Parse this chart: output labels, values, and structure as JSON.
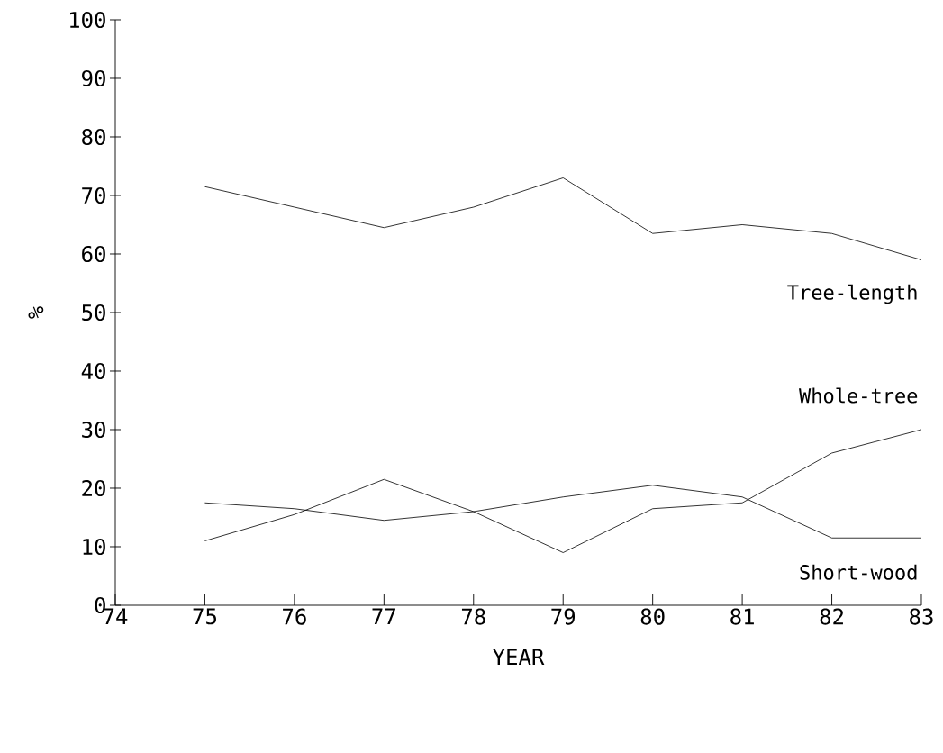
{
  "chart_data": {
    "type": "line",
    "xlabel": "YEAR",
    "ylabel": "%",
    "x": [
      75,
      76,
      77,
      78,
      79,
      80,
      81,
      82,
      83
    ],
    "series": [
      {
        "name": "Tree-length",
        "color": "#000000",
        "values": [
          71.5,
          68,
          64.5,
          68,
          73,
          63.5,
          65,
          63.5,
          59
        ]
      },
      {
        "name": "Whole-tree",
        "color": "#000000",
        "values": [
          11,
          15.5,
          21.5,
          16,
          9,
          16.5,
          17.5,
          26,
          30
        ]
      },
      {
        "name": "Short-wood",
        "color": "#000000",
        "values": [
          17.5,
          16.5,
          14.5,
          16,
          18.5,
          20.5,
          18.5,
          11.5,
          11.5
        ]
      }
    ],
    "xlim": [
      74,
      83
    ],
    "ylim": [
      0,
      100
    ],
    "xticks": [
      74,
      75,
      76,
      77,
      78,
      79,
      80,
      81,
      82,
      83
    ],
    "yticks": [
      0,
      10,
      20,
      30,
      40,
      50,
      60,
      70,
      80,
      90,
      100
    ],
    "grid": false,
    "marker": "none",
    "line_style": "solid"
  }
}
